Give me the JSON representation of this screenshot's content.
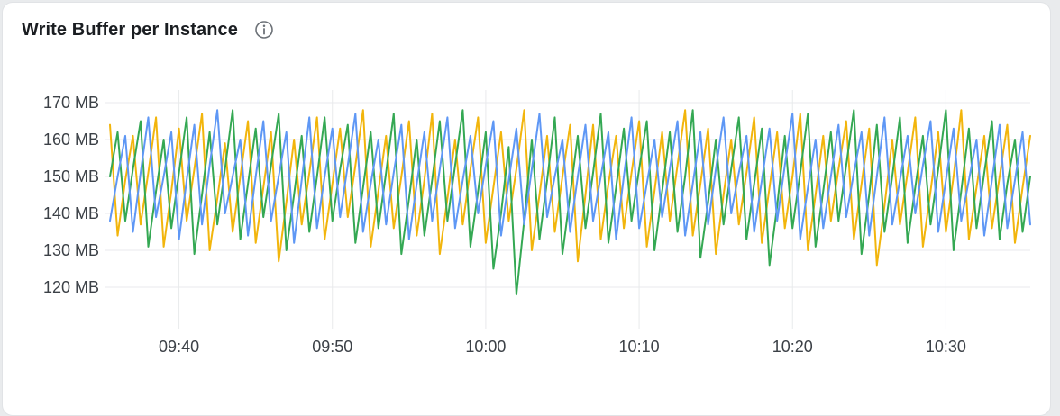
{
  "panel": {
    "title": "Write Buffer per Instance",
    "icons": [
      {
        "name": "info-icon",
        "glyph": "circled-i",
        "color": "#6d7278"
      }
    ]
  },
  "colors": {
    "card_background": "#ffffff",
    "card_border": "#e1e3e6",
    "title_text": "#1a1d21",
    "axis_text": "#3c4147",
    "grid_line": "#e8eaec"
  },
  "chart_data": {
    "type": "line",
    "title": "Write Buffer per Instance",
    "xlabel": "",
    "ylabel": "",
    "unit": "MB",
    "grid": true,
    "legend": "none",
    "x_axis": {
      "start_time": "09:35:30",
      "end_time": "10:35:30",
      "span_minutes": 60,
      "interval_seconds": 30,
      "tick_labels": [
        "09:40",
        "09:50",
        "10:00",
        "10:10",
        "10:20",
        "10:30"
      ],
      "tick_minutes": [
        4.5,
        14.5,
        24.5,
        34.5,
        44.5,
        54.5
      ]
    },
    "y_axis": {
      "tick_labels": [
        "170 MB",
        "160 MB",
        "150 MB",
        "140 MB",
        "130 MB",
        "120 MB"
      ],
      "tick_values": [
        170,
        160,
        150,
        140,
        130,
        120
      ],
      "range": [
        110,
        172
      ]
    },
    "series": [
      {
        "name": "series-yellow",
        "color": "#f2b50c",
        "values": [
          164,
          134,
          149,
          161,
          137,
          151,
          166,
          131,
          146,
          163,
          138,
          152,
          167,
          130,
          144,
          159,
          135,
          150,
          165,
          132,
          147,
          162,
          127,
          143,
          160,
          137,
          151,
          166,
          133,
          148,
          163,
          139,
          153,
          168,
          131,
          146,
          161,
          136,
          150,
          165,
          134,
          149,
          167,
          129,
          144,
          160,
          137,
          152,
          166,
          132,
          147,
          162,
          138,
          152,
          168,
          130,
          145,
          161,
          135,
          150,
          164,
          127,
          145,
          164,
          133,
          148,
          161,
          136,
          151,
          165,
          131,
          146,
          162,
          138,
          153,
          168,
          134,
          148,
          163,
          129,
          145,
          160,
          137,
          151,
          166,
          132,
          147,
          162,
          136,
          150,
          167,
          130,
          145,
          161,
          138,
          152,
          165,
          133,
          148,
          163,
          126,
          142,
          160,
          137,
          151,
          166,
          131,
          146,
          162,
          135,
          150,
          168,
          133,
          147,
          161,
          136,
          150,
          164,
          132,
          147,
          161
        ]
      },
      {
        "name": "series-green",
        "color": "#34a853",
        "values": [
          150,
          162,
          138,
          152,
          165,
          131,
          146,
          160,
          136,
          151,
          166,
          129,
          145,
          162,
          137,
          152,
          168,
          133,
          148,
          163,
          139,
          153,
          167,
          130,
          145,
          161,
          135,
          150,
          166,
          138,
          152,
          164,
          132,
          147,
          162,
          136,
          151,
          167,
          129,
          144,
          160,
          134,
          149,
          165,
          138,
          153,
          168,
          131,
          146,
          162,
          125,
          140,
          158,
          118,
          138,
          160,
          133,
          149,
          166,
          129,
          145,
          161,
          136,
          151,
          167,
          132,
          147,
          163,
          138,
          152,
          165,
          130,
          146,
          162,
          135,
          150,
          168,
          128,
          143,
          160,
          137,
          152,
          166,
          133,
          148,
          163,
          126,
          142,
          161,
          136,
          151,
          167,
          131,
          146,
          162,
          138,
          153,
          168,
          129,
          145,
          164,
          135,
          150,
          166,
          132,
          147,
          161,
          137,
          152,
          168,
          130,
          146,
          163,
          136,
          151,
          165,
          133,
          148,
          160,
          135,
          150
        ]
      },
      {
        "name": "series-blue",
        "color": "#5e97f5",
        "values": [
          138,
          150,
          161,
          135,
          151,
          166,
          139,
          150,
          162,
          133,
          149,
          164,
          137,
          153,
          168,
          140,
          150,
          160,
          134,
          150,
          165,
          138,
          150,
          162,
          132,
          149,
          166,
          136,
          150,
          163,
          139,
          153,
          167,
          135,
          148,
          160,
          137,
          151,
          164,
          133,
          148,
          162,
          138,
          152,
          166,
          136,
          149,
          161,
          140,
          153,
          165,
          134,
          149,
          163,
          137,
          152,
          167,
          139,
          150,
          160,
          135,
          150,
          164,
          138,
          150,
          162,
          133,
          150,
          166,
          136,
          148,
          160,
          139,
          152,
          165,
          134,
          148,
          162,
          137,
          152,
          166,
          140,
          151,
          161,
          135,
          149,
          163,
          138,
          153,
          167,
          133,
          147,
          160,
          136,
          150,
          164,
          139,
          151,
          162,
          134,
          150,
          166,
          137,
          149,
          161,
          140,
          153,
          165,
          135,
          149,
          163,
          138,
          149,
          160,
          134,
          149,
          164,
          136,
          149,
          162,
          137
        ]
      }
    ]
  }
}
